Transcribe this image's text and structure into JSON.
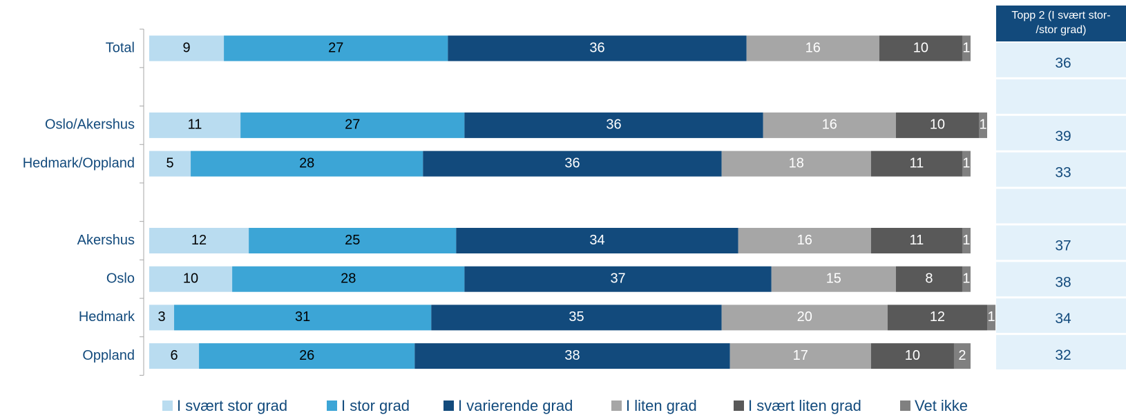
{
  "chart_data": {
    "type": "stacked-bar-horizontal",
    "categories": [
      "Total",
      null,
      "Oslo/Akershus",
      "Hedmark/Oppland",
      null,
      "Akershus",
      "Oslo",
      "Hedmark",
      "Oppland"
    ],
    "series": [
      {
        "name": "I svært stor grad",
        "color": "#b9dcf0",
        "values": [
          9,
          null,
          11,
          5,
          null,
          12,
          10,
          3,
          6
        ]
      },
      {
        "name": "I stor grad",
        "color": "#3ca5d6",
        "values": [
          27,
          null,
          27,
          28,
          null,
          25,
          28,
          31,
          26
        ]
      },
      {
        "name": "I varierende grad",
        "color": "#124a7c",
        "values": [
          36,
          null,
          36,
          36,
          null,
          34,
          37,
          35,
          38
        ]
      },
      {
        "name": "I liten grad",
        "color": "#a6a6a6",
        "values": [
          16,
          null,
          16,
          18,
          null,
          16,
          15,
          20,
          17
        ]
      },
      {
        "name": "I svært liten grad",
        "color": "#595959",
        "values": [
          10,
          null,
          10,
          11,
          null,
          11,
          8,
          12,
          10
        ]
      },
      {
        "name": "Vet ikke",
        "color": "#808080",
        "values": [
          1,
          null,
          1,
          1,
          null,
          1,
          1,
          1,
          2
        ]
      }
    ],
    "xlim": [
      0,
      100
    ],
    "legend": "bottom",
    "table": {
      "header": "Topp 2 (I svært stor-/stor grad)",
      "values": [
        36,
        null,
        39,
        33,
        null,
        37,
        38,
        34,
        32
      ]
    }
  }
}
